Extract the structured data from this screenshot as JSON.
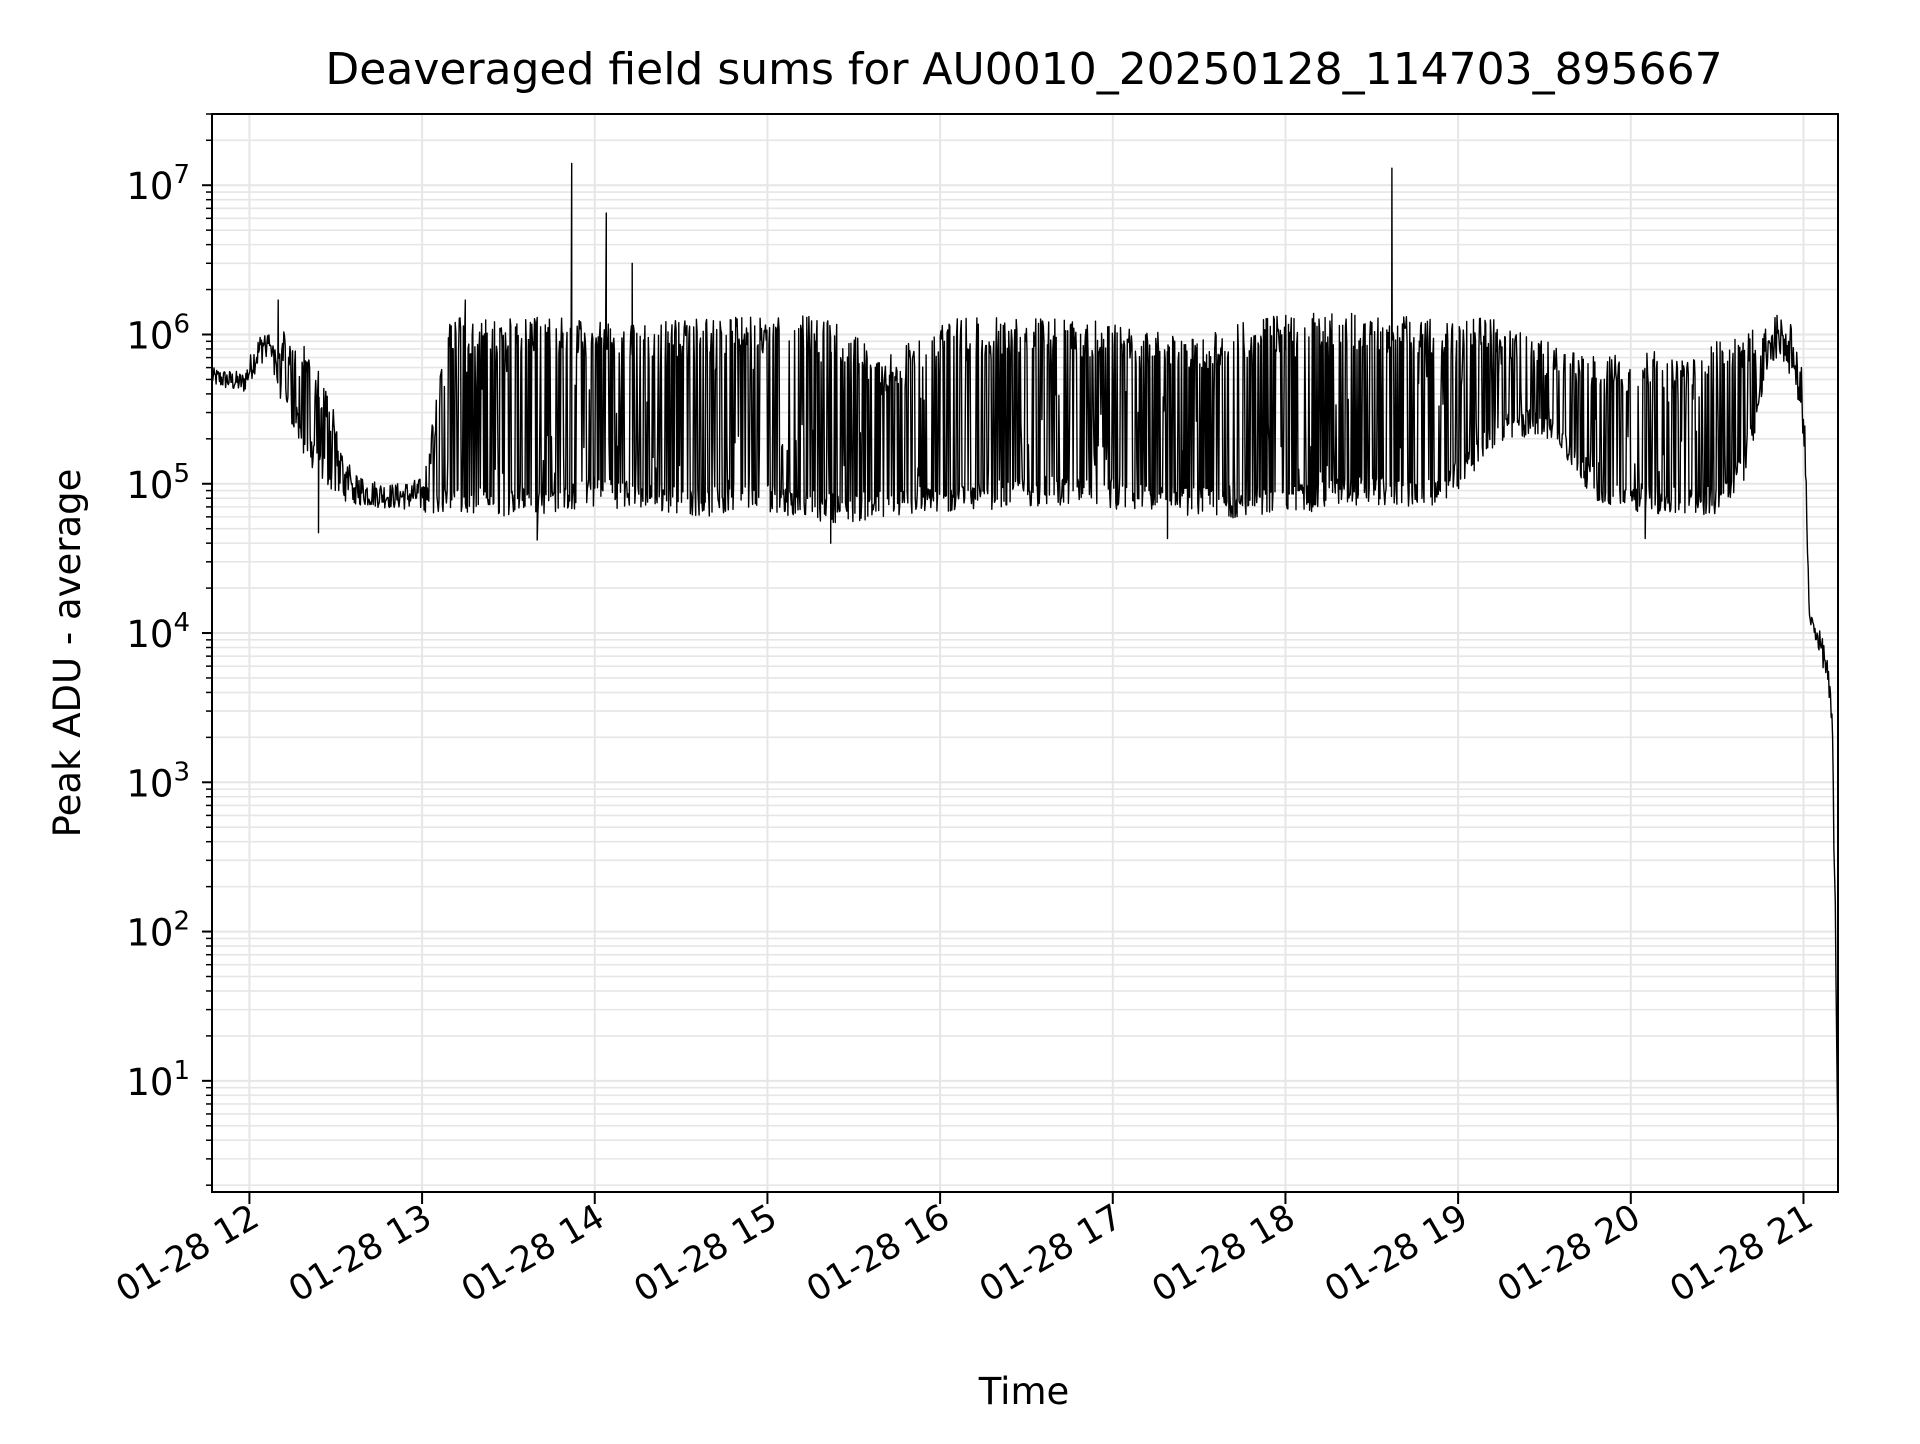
{
  "chart_data": {
    "type": "line",
    "title": "Deaveraged field sums for AU0010_20250128_114703_895667",
    "xlabel": "Time",
    "ylabel": "Peak ADU - average",
    "yscale": "log",
    "ylim": [
      1.8,
      30000000
    ],
    "xlim": [
      "2025-01-28 11:47",
      "2025-01-28 21:12"
    ],
    "x_ticks": [
      "2025-01-28 12:00",
      "2025-01-28 13:00",
      "2025-01-28 14:00",
      "2025-01-28 15:00",
      "2025-01-28 16:00",
      "2025-01-28 17:00",
      "2025-01-28 18:00",
      "2025-01-28 19:00",
      "2025-01-28 20:00",
      "2025-01-28 21:00"
    ],
    "x_tick_labels": [
      "01-28 12",
      "01-28 13",
      "01-28 14",
      "01-28 15",
      "01-28 16",
      "01-28 17",
      "01-28 18",
      "01-28 19",
      "01-28 20",
      "01-28 21"
    ],
    "y_ticks": [
      10,
      100,
      1000,
      10000,
      100000,
      1000000,
      10000000
    ],
    "y_tick_labels": [
      {
        "base": "10",
        "exp": "1"
      },
      {
        "base": "10",
        "exp": "2"
      },
      {
        "base": "10",
        "exp": "3"
      },
      {
        "base": "10",
        "exp": "4"
      },
      {
        "base": "10",
        "exp": "5"
      },
      {
        "base": "10",
        "exp": "6"
      },
      {
        "base": "10",
        "exp": "7"
      }
    ],
    "grid": true,
    "line_color": "#000000",
    "grid_color": "#e6e6e6",
    "series": [
      {
        "x": [
          "2025-01-28 11:47",
          "2025-01-28 11:53",
          "2025-01-28 11:58",
          "2025-01-28 12:02",
          "2025-01-28 12:06",
          "2025-01-28 12:10",
          "2025-01-28 12:14",
          "2025-01-28 12:18",
          "2025-01-28 12:22",
          "2025-01-28 12:26",
          "2025-01-28 12:30",
          "2025-01-28 12:34",
          "2025-01-28 12:40",
          "2025-01-28 12:50",
          "2025-01-28 13:00",
          "2025-01-28 13:10",
          "2025-01-28 13:20",
          "2025-01-28 13:30",
          "2025-01-28 13:40",
          "2025-01-28 13:50",
          "2025-01-28 14:00",
          "2025-01-28 14:10",
          "2025-01-28 14:20",
          "2025-01-28 14:30",
          "2025-01-28 14:40",
          "2025-01-28 14:50",
          "2025-01-28 15:00",
          "2025-01-28 15:10",
          "2025-01-28 15:20",
          "2025-01-28 15:30",
          "2025-01-28 15:40",
          "2025-01-28 15:50",
          "2025-01-28 16:00",
          "2025-01-28 16:10",
          "2025-01-28 16:20",
          "2025-01-28 16:30",
          "2025-01-28 16:40",
          "2025-01-28 16:50",
          "2025-01-28 17:00",
          "2025-01-28 17:10",
          "2025-01-28 17:20",
          "2025-01-28 17:30",
          "2025-01-28 17:40",
          "2025-01-28 17:50",
          "2025-01-28 18:00",
          "2025-01-28 18:10",
          "2025-01-28 18:20",
          "2025-01-28 18:30",
          "2025-01-28 18:40",
          "2025-01-28 18:50",
          "2025-01-28 19:00",
          "2025-01-28 19:10",
          "2025-01-28 19:20",
          "2025-01-28 19:30",
          "2025-01-28 19:40",
          "2025-01-28 19:50",
          "2025-01-28 20:00",
          "2025-01-28 20:10",
          "2025-01-28 20:20",
          "2025-01-28 20:30",
          "2025-01-28 20:40",
          "2025-01-28 20:48",
          "2025-01-28 20:52",
          "2025-01-28 20:56",
          "2025-01-28 21:00",
          "2025-01-28 21:02",
          "2025-01-28 21:04",
          "2025-01-28 21:06",
          "2025-01-28 21:08",
          "2025-01-28 21:10",
          "2025-01-28 21:11",
          "2025-01-28 21:12"
        ],
        "low": [
          450000,
          420000,
          400000,
          550000,
          700000,
          400000,
          280000,
          160000,
          120000,
          100000,
          85000,
          75000,
          70000,
          68000,
          65000,
          60000,
          62000,
          60000,
          62000,
          65000,
          70000,
          68000,
          65000,
          62000,
          60000,
          62000,
          65000,
          60000,
          55000,
          55000,
          58000,
          60000,
          62000,
          65000,
          68000,
          70000,
          72000,
          68000,
          65000,
          65000,
          62000,
          60000,
          58000,
          60000,
          62000,
          65000,
          70000,
          72000,
          70000,
          68000,
          90000,
          150000,
          200000,
          200000,
          120000,
          70000,
          65000,
          62000,
          60000,
          62000,
          110000,
          600000,
          700000,
          500000,
          200000,
          12000,
          9000,
          7000,
          4500,
          2000,
          100,
          3.5
        ],
        "high": [
          600000,
          580000,
          560000,
          900000,
          1250000,
          1250000,
          1000000,
          900000,
          700000,
          500000,
          300000,
          150000,
          110000,
          100000,
          110000,
          1300000,
          1300000,
          1300000,
          1300000,
          1300000,
          1250000,
          1200000,
          1200000,
          1250000,
          1300000,
          1300000,
          1350000,
          1350000,
          1300000,
          1000000,
          700000,
          900000,
          1300000,
          1300000,
          1300000,
          1300000,
          1300000,
          1250000,
          1200000,
          1100000,
          1000000,
          1000000,
          1100000,
          1300000,
          1350000,
          1400000,
          1400000,
          1350000,
          1350000,
          1300000,
          1300000,
          1300000,
          1200000,
          900000,
          800000,
          800000,
          700000,
          800000,
          700000,
          900000,
          1000000,
          1300000,
          1400000,
          1200000,
          800000,
          14000,
          12000,
          10000,
          8000,
          3000,
          200,
          3.5
        ]
      }
    ],
    "spikes": [
      {
        "x": "2025-01-28 13:52",
        "y": 14000000
      },
      {
        "x": "2025-01-28 14:04",
        "y": 6500000
      },
      {
        "x": "2025-01-28 14:13",
        "y": 3000000
      },
      {
        "x": "2025-01-28 18:37",
        "y": 13000000
      },
      {
        "x": "2025-01-28 12:10",
        "y": 1700000
      },
      {
        "x": "2025-01-28 13:15",
        "y": 1700000
      }
    ],
    "dips": [
      {
        "x": "2025-01-28 12:24",
        "y": 47000
      },
      {
        "x": "2025-01-28 13:40",
        "y": 42000
      },
      {
        "x": "2025-01-28 15:22",
        "y": 40000
      },
      {
        "x": "2025-01-28 17:19",
        "y": 43000
      },
      {
        "x": "2025-01-28 20:05",
        "y": 43000
      }
    ]
  }
}
